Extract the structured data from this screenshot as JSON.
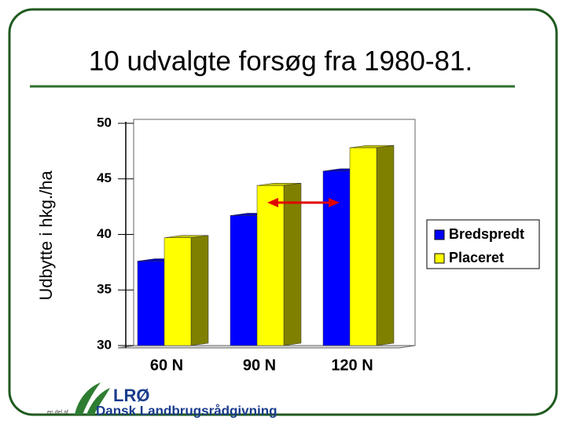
{
  "chart_data": {
    "type": "bar3d",
    "title": "10 udvalgte forsøg fra 1980-81.",
    "y_label": "Udbytte i hkg./ha",
    "categories": [
      "60 N",
      "90 N",
      "120 N"
    ],
    "series": [
      {
        "name": "Bredspredt",
        "color": "#0000ff",
        "values": [
          37.6,
          41.7,
          45.7
        ]
      },
      {
        "name": "Placeret",
        "color": "#ffff00",
        "values": [
          39.7,
          44.4,
          47.8
        ]
      }
    ],
    "ylim": [
      30,
      50
    ],
    "yticks": [
      30,
      35,
      40,
      45,
      50
    ],
    "grid": false,
    "legend": "right"
  },
  "footer": {
    "logo": "LRØ",
    "organisation": "Dansk Landbrugsrådgivning",
    "note": "en del af"
  }
}
